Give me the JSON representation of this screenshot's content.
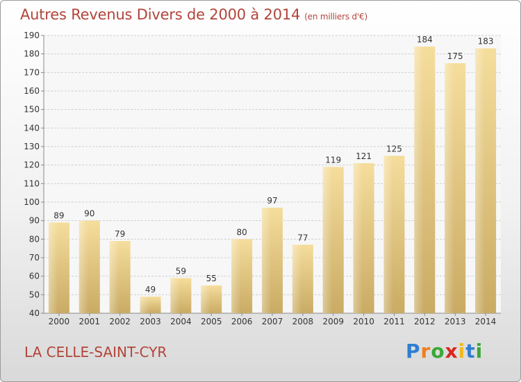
{
  "title": "Autres Revenus Divers de 2000 à 2014",
  "subtitle": "(en milliers d'€)",
  "location": "LA CELLE-SAINT-CYR",
  "brand": {
    "letters": [
      "P",
      "r",
      "o",
      "x",
      "i",
      "t",
      "i"
    ],
    "colors": [
      "#2f7fd0",
      "#f07f1b",
      "#38a935",
      "#d8261e",
      "#f0b81b",
      "#2f7fd0",
      "#38a935"
    ]
  },
  "colors": {
    "title": "#b2443a",
    "bar_light": "#f5dd9c",
    "bar_dark": "#c9ab64",
    "grid": "#cfcfcf"
  },
  "chart_data": {
    "type": "bar",
    "categories": [
      "2000",
      "2001",
      "2002",
      "2003",
      "2004",
      "2005",
      "2006",
      "2007",
      "2008",
      "2009",
      "2010",
      "2011",
      "2012",
      "2013",
      "2014"
    ],
    "values": [
      89,
      90,
      79,
      49,
      59,
      55,
      80,
      97,
      77,
      119,
      121,
      125,
      184,
      175,
      183
    ],
    "ylim": [
      40,
      190
    ],
    "yticks": [
      40,
      50,
      60,
      70,
      80,
      90,
      100,
      110,
      120,
      130,
      140,
      150,
      160,
      170,
      180,
      190
    ],
    "grid": true,
    "data_labels": true
  }
}
